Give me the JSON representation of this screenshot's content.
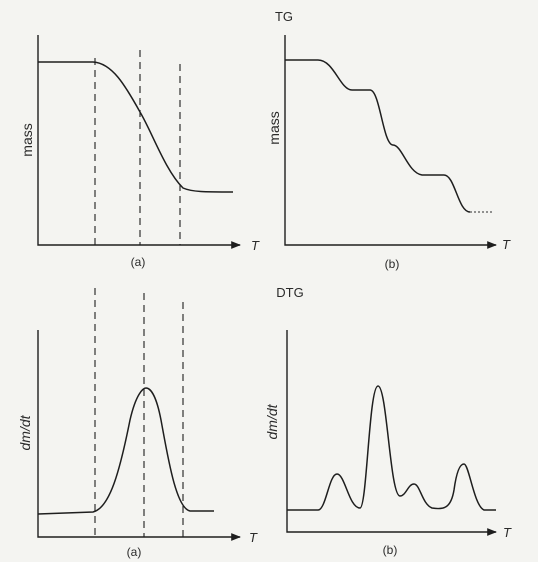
{
  "top_section": {
    "heading": "TG"
  },
  "bottom_section": {
    "heading": "DTG"
  },
  "panels": {
    "tg_a": {
      "ylabel": "mass",
      "xlabel": "T",
      "caption": "(a)"
    },
    "tg_b": {
      "ylabel": "mass",
      "xlabel": "T",
      "caption": "(b)"
    },
    "dtg_a": {
      "ylabel": "dm/dt",
      "xlabel": "T",
      "caption": "(a)"
    },
    "dtg_b": {
      "ylabel": "dm/dt",
      "xlabel": "T",
      "caption": "(b)"
    }
  }
}
